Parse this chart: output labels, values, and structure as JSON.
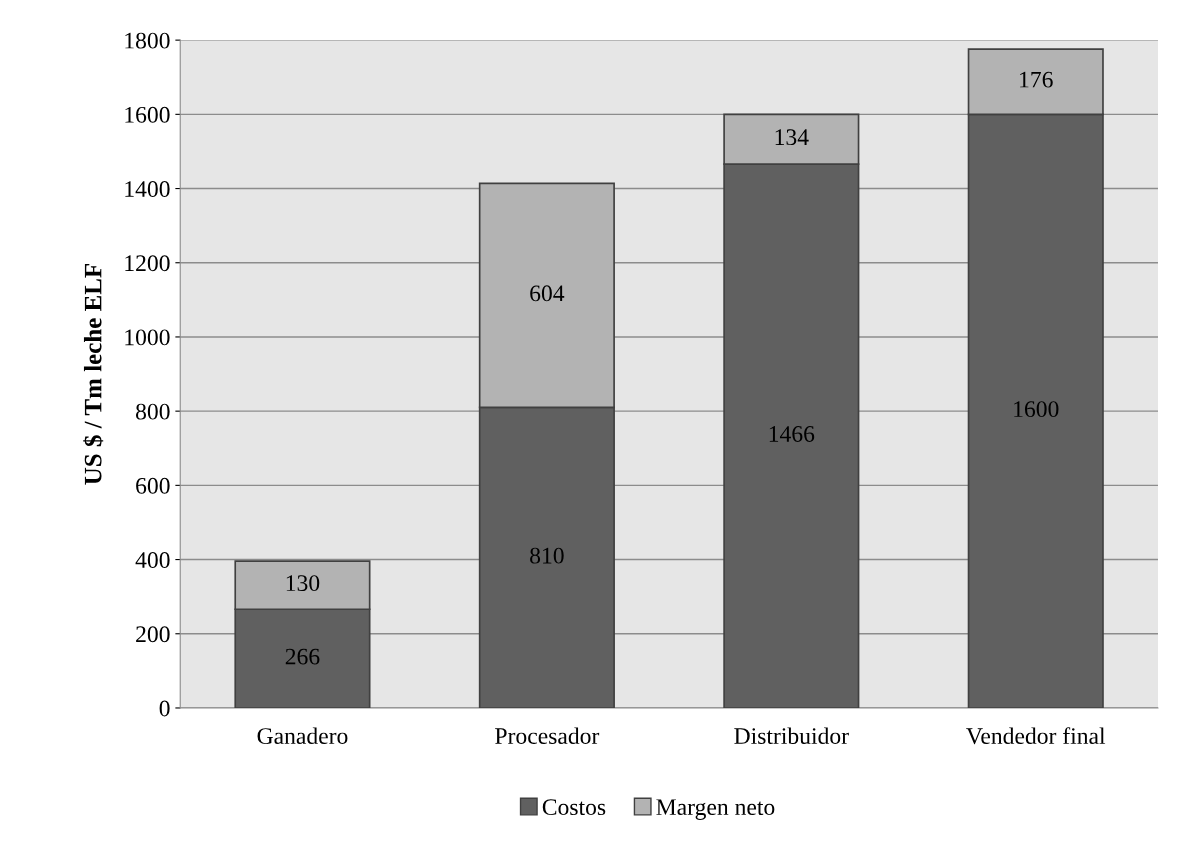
{
  "chart_data": {
    "type": "bar",
    "stacked": true,
    "ylabel": "US $ / Tm leche ELF",
    "categories": [
      "Ganadero",
      "Procesador",
      "Distribuidor",
      "Vendedor final"
    ],
    "series": [
      {
        "name": "Costos",
        "color": "#606060",
        "values": [
          266,
          810,
          1466,
          1600
        ]
      },
      {
        "name": "Margen neto",
        "color": "#b3b3b3",
        "values": [
          130,
          604,
          134,
          176
        ]
      }
    ],
    "ylim": [
      0,
      1800
    ],
    "yticks": [
      0,
      200,
      400,
      600,
      800,
      1000,
      1200,
      1400,
      1600,
      1800
    ],
    "grid": "y",
    "legend": "bottom",
    "data_labels": true
  }
}
